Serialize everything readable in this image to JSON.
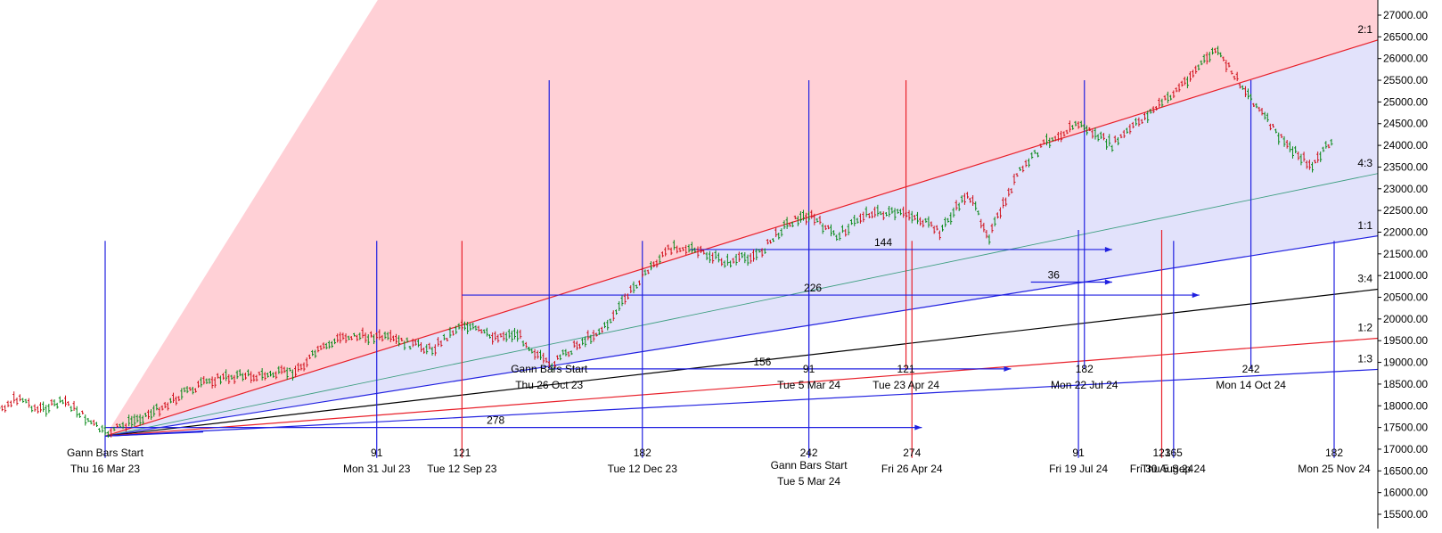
{
  "chart_data": {
    "type": "line",
    "title": "",
    "price_axis": {
      "ticks": [
        "15500.00",
        "16000.00",
        "16500.00",
        "17000.00",
        "17500.00",
        "18000.00",
        "18500.00",
        "19000.00",
        "19500.00",
        "20000.00",
        "20500.00",
        "21000.00",
        "21500.00",
        "22000.00",
        "22500.00",
        "23000.00",
        "23500.00",
        "24000.00",
        "24500.00",
        "25000.00",
        "25500.00",
        "26000.00",
        "26500.00",
        "27000.00"
      ],
      "ylim": [
        15400,
        27200
      ]
    },
    "time_axis": {
      "start": "Thu 16 Mar 23",
      "end": "Mon 25 Nov 24"
    },
    "price_series": [
      {
        "date": "2023-01-09",
        "value": 18100
      },
      {
        "date": "2023-01-20",
        "value": 17900
      },
      {
        "date": "2023-02-01",
        "value": 18200
      },
      {
        "date": "2023-02-10",
        "value": 17900
      },
      {
        "date": "2023-02-24",
        "value": 18100
      },
      {
        "date": "2023-03-16",
        "value": 17350
      },
      {
        "date": "2023-03-28",
        "value": 17600
      },
      {
        "date": "2023-04-11",
        "value": 17900
      },
      {
        "date": "2023-04-25",
        "value": 18300
      },
      {
        "date": "2023-05-09",
        "value": 18600
      },
      {
        "date": "2023-05-23",
        "value": 18700
      },
      {
        "date": "2023-06-06",
        "value": 18700
      },
      {
        "date": "2023-06-20",
        "value": 18800
      },
      {
        "date": "2023-06-30",
        "value": 19200
      },
      {
        "date": "2023-07-14",
        "value": 19600
      },
      {
        "date": "2023-07-31",
        "value": 19600
      },
      {
        "date": "2023-08-14",
        "value": 19450
      },
      {
        "date": "2023-08-28",
        "value": 19300
      },
      {
        "date": "2023-09-12",
        "value": 19900
      },
      {
        "date": "2023-09-26",
        "value": 19600
      },
      {
        "date": "2023-10-10",
        "value": 19650
      },
      {
        "date": "2023-10-26",
        "value": 18900
      },
      {
        "date": "2023-11-09",
        "value": 19400
      },
      {
        "date": "2023-11-23",
        "value": 19800
      },
      {
        "date": "2023-12-12",
        "value": 21000
      },
      {
        "date": "2023-12-28",
        "value": 21700
      },
      {
        "date": "2024-01-12",
        "value": 21500
      },
      {
        "date": "2024-01-24",
        "value": 21300
      },
      {
        "date": "2024-02-09",
        "value": 21500
      },
      {
        "date": "2024-02-23",
        "value": 22200
      },
      {
        "date": "2024-03-05",
        "value": 22400
      },
      {
        "date": "2024-03-19",
        "value": 21900
      },
      {
        "date": "2024-04-03",
        "value": 22450
      },
      {
        "date": "2024-04-26",
        "value": 22400
      },
      {
        "date": "2024-05-10",
        "value": 22000
      },
      {
        "date": "2024-05-24",
        "value": 22900
      },
      {
        "date": "2024-06-04",
        "value": 21900
      },
      {
        "date": "2024-06-18",
        "value": 23300
      },
      {
        "date": "2024-07-03",
        "value": 24100
      },
      {
        "date": "2024-07-19",
        "value": 24500
      },
      {
        "date": "2024-08-05",
        "value": 24000
      },
      {
        "date": "2024-08-20",
        "value": 24600
      },
      {
        "date": "2024-09-05",
        "value": 25200
      },
      {
        "date": "2024-09-26",
        "value": 26200
      },
      {
        "date": "2024-10-14",
        "value": 25100
      },
      {
        "date": "2024-10-28",
        "value": 24200
      },
      {
        "date": "2024-11-14",
        "value": 23500
      },
      {
        "date": "2024-11-25",
        "value": 24200
      }
    ],
    "gann_origin": {
      "date": "2023-03-16",
      "value": 17300
    },
    "fan_lines": [
      {
        "label": "2:1",
        "end_date": "2024-12-01",
        "end_value": 26200,
        "color": "#e8202a"
      },
      {
        "label": "4:3",
        "end_date": "2024-12-01",
        "end_value": 23200,
        "color": "#3f9f82"
      },
      {
        "label": "1:1",
        "end_date": "2024-12-01",
        "end_value": 21800,
        "color": "#2020e0"
      },
      {
        "label": "3:4",
        "end_date": "2024-12-01",
        "end_value": 20600,
        "color": "#000000"
      },
      {
        "label": "1:2",
        "end_date": "2024-12-01",
        "end_value": 19500,
        "color": "#e8202a"
      },
      {
        "label": "1:3",
        "end_date": "2024-12-01",
        "end_value": 18800,
        "color": "#2020e0"
      }
    ],
    "fan_fills": [
      {
        "from_line": "2:1",
        "to_line": "steep",
        "color": "#ffd0d6"
      },
      {
        "from_line": "1:1",
        "to_line": "2:1",
        "color": "#e2e2fb"
      }
    ],
    "time_cycles": [
      {
        "date": "2023-03-16",
        "count": "",
        "date_text": "Thu 16 Mar 23",
        "caption": "Gann Bars Start",
        "color": "#2020e0",
        "top_value": 21800,
        "bottom_value": 16800,
        "row": "bottom"
      },
      {
        "date": "2023-07-31",
        "count": "91",
        "date_text": "Mon 31 Jul 23",
        "caption": "",
        "color": "#2020e0",
        "top_value": 21800,
        "bottom_value": 16800,
        "row": "bottom"
      },
      {
        "date": "2023-09-12",
        "count": "121",
        "date_text": "Tue 12 Sep 23",
        "caption": "",
        "color": "#e8202a",
        "top_value": 21800,
        "bottom_value": 16800,
        "row": "bottom"
      },
      {
        "date": "2023-12-12",
        "count": "182",
        "date_text": "Tue 12 Dec 23",
        "caption": "",
        "color": "#2020e0",
        "top_value": 21800,
        "bottom_value": 16800,
        "row": "bottom"
      },
      {
        "date": "2024-03-05",
        "count": "242",
        "date_text": "Tue 5 Mar 24",
        "caption": "Gann Bars Start",
        "color": "#2020e0",
        "top_value": 22050,
        "bottom_value": 16800,
        "row": "bottom"
      },
      {
        "date": "2024-04-26",
        "count": "274",
        "date_text": "Fri 26 Apr 24",
        "caption": "",
        "color": "#e8202a",
        "top_value": 21800,
        "bottom_value": 16800,
        "row": "bottom"
      },
      {
        "date": "2024-07-19",
        "count": "91",
        "date_text": "Fri 19 Jul 24",
        "caption": "",
        "color": "#2020e0",
        "top_value": 22050,
        "bottom_value": 16800,
        "row": "bottom"
      },
      {
        "date": "2024-08-30",
        "count": "121",
        "date_text": "Fri 30 Aug 24",
        "caption": "",
        "color": "#e8202a",
        "top_value": 22050,
        "bottom_value": 16800,
        "row": "bottom"
      },
      {
        "date": "2024-09-05",
        "count": "365",
        "date_text": "Thu 5 Sep 24",
        "caption": "",
        "color": "#2020e0",
        "top_value": 21800,
        "bottom_value": 16800,
        "row": "bottom"
      },
      {
        "date": "2024-11-25",
        "count": "182",
        "date_text": "Mon 25 Nov 24",
        "caption": "",
        "color": "#2020e0",
        "top_value": 21800,
        "bottom_value": 16800,
        "row": "bottom"
      },
      {
        "date": "2023-10-26",
        "count": "",
        "date_text": "Thu 26 Oct 23",
        "caption": "Gann Bars Start",
        "color": "#2020e0",
        "top_value": 25500,
        "bottom_value": 18850,
        "row": "upper"
      },
      {
        "date": "2024-03-05",
        "count": "91",
        "date_text": "Tue 5 Mar 24",
        "caption": "",
        "color": "#2020e0",
        "top_value": 25500,
        "bottom_value": 18850,
        "row": "upper"
      },
      {
        "date": "2024-04-23",
        "count": "121",
        "date_text": "Tue 23 Apr 24",
        "caption": "",
        "color": "#e8202a",
        "top_value": 25500,
        "bottom_value": 18850,
        "row": "upper"
      },
      {
        "date": "2024-07-22",
        "count": "182",
        "date_text": "Mon 22 Jul 24",
        "caption": "",
        "color": "#2020e0",
        "top_value": 25500,
        "bottom_value": 18850,
        "row": "upper"
      },
      {
        "date": "2024-10-14",
        "count": "242",
        "date_text": "Mon 14 Oct 24",
        "caption": "",
        "color": "#2020e0",
        "top_value": 25500,
        "bottom_value": 18850,
        "row": "upper"
      }
    ],
    "duration_arrows": [
      {
        "label": "278",
        "start_date": "2023-03-16",
        "end_date": "2024-05-01",
        "value": 17500
      },
      {
        "label": "156",
        "start_date": "2023-10-26",
        "end_date": "2024-06-15",
        "value": 18850
      },
      {
        "label": "226",
        "start_date": "2023-09-12",
        "end_date": "2024-09-18",
        "value": 20550
      },
      {
        "label": "144",
        "start_date": "2024-01-05",
        "end_date": "2024-08-05",
        "value": 21600
      },
      {
        "label": "36",
        "start_date": "2024-06-25",
        "end_date": "2024-08-05",
        "value": 20850
      }
    ],
    "grid": false,
    "legend": "none"
  }
}
